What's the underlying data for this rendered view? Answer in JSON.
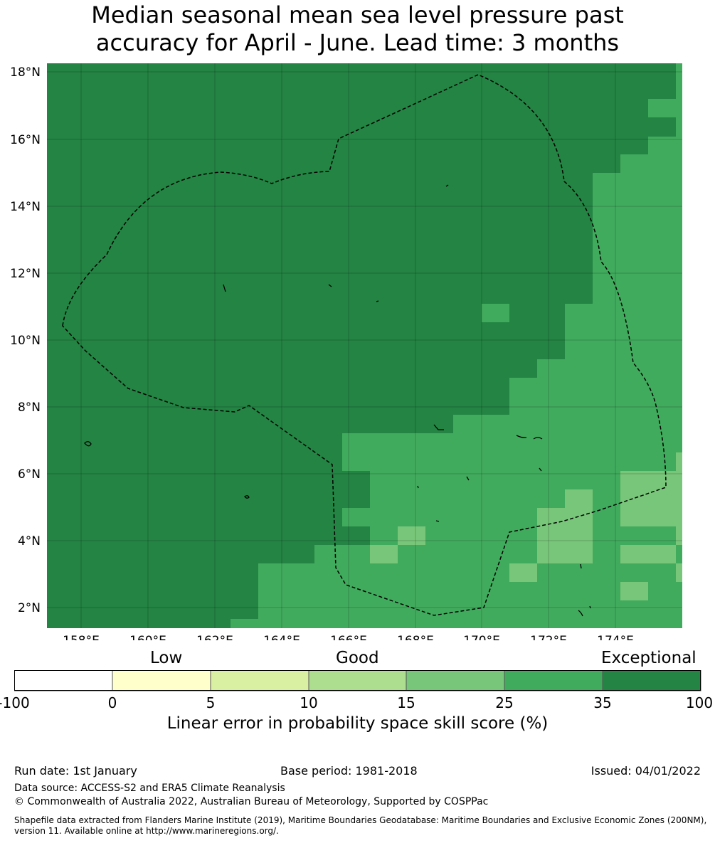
{
  "title_line1": "Median seasonal mean sea level pressure past",
  "title_line2": "accuracy for April - June. Lead time: 3 months",
  "map": {
    "lat_labels": [
      "18°N",
      "16°N",
      "14°N",
      "12°N",
      "10°N",
      "8°N",
      "6°N",
      "4°N",
      "2°N"
    ],
    "lon_labels": [
      "158°E",
      "160°E",
      "162°E",
      "164°E",
      "166°E",
      "168°E",
      "170°E",
      "172°E",
      "174°E"
    ],
    "lat_values": [
      18,
      16,
      14,
      12,
      10,
      8,
      6,
      4,
      2
    ],
    "lon_values": [
      158,
      160,
      162,
      164,
      166,
      168,
      170,
      172,
      174
    ],
    "lon_range": [
      157,
      176
    ],
    "lat_range": [
      1.4,
      18.3
    ],
    "boundary_style": "dashed-black",
    "grid": true,
    "colors": {
      "exceptional": "#238443",
      "25_35": "#41ab5d",
      "15_25": "#78c679",
      "10_15": "#addd8e",
      "5_10": "#d9f0a3",
      "0_5": "#ffffcc",
      "neg": "#ffffff"
    }
  },
  "colorbar": {
    "categories": [
      "Low",
      "Good",
      "Exceptional"
    ],
    "ticks": [
      "-100",
      "0",
      "5",
      "10",
      "15",
      "25",
      "35",
      "100"
    ],
    "colors": [
      "#ffffff",
      "#ffffcc",
      "#d9f0a3",
      "#addd8e",
      "#78c679",
      "#41ab5d",
      "#238443"
    ],
    "label": "Linear error in probability space skill score (%)"
  },
  "footer": {
    "run_date": "Run date: 1st January",
    "base_period": "Base period: 1981-2018",
    "issued": "Issued: 04/01/2022",
    "data_source": "Data source: ACCESS-S2 and ERA5 Climate Reanalysis",
    "copyright": "© Commonwealth of Australia 2022, Australian Bureau of Meteorology, Supported by COSPPac",
    "shapefile_1": "Shapefile data extracted from Flanders Marine Institute (2019), Maritime Boundaries Geodatabase: Maritime Boundaries and Exclusive Economic Zones (200NM),",
    "shapefile_2": "version 11. Available online at http://www.marineregions.org/."
  }
}
